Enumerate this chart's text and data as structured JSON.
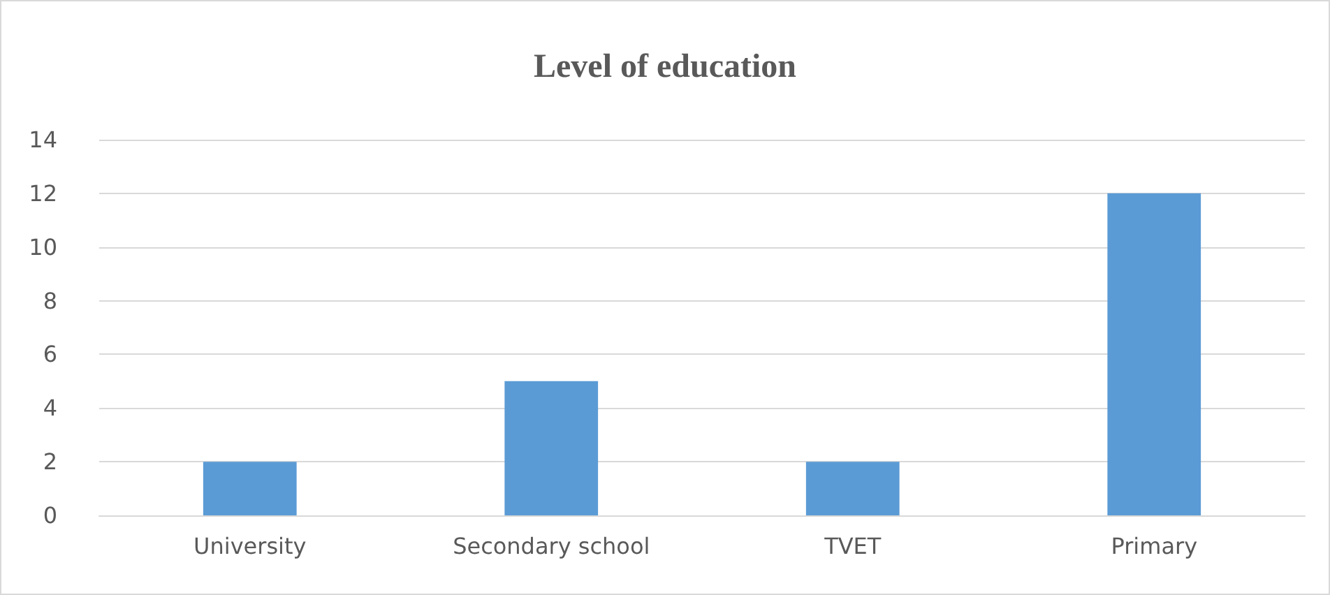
{
  "chart_data": {
    "type": "bar",
    "title": "Level of education",
    "categories": [
      "University",
      "Secondary school",
      "TVET",
      "Primary"
    ],
    "values": [
      2,
      5,
      2,
      12
    ],
    "color": "#5b9bd5",
    "ylim": [
      0,
      14
    ],
    "yticks": [
      0,
      2,
      4,
      6,
      8,
      10,
      12,
      14
    ],
    "grid": "y"
  }
}
